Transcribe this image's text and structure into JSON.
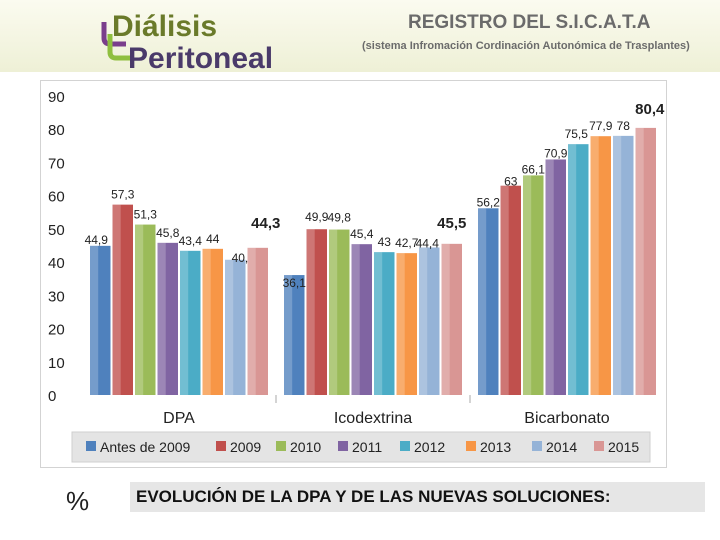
{
  "header": {
    "logo_line1": "Diálisis",
    "logo_line2": "Peritoneal",
    "title": "REGISTRO DEL S.I.C.A.T.A",
    "subtitle": "(sistema Infromación Cordinación Autonómica de Trasplantes)"
  },
  "footer": {
    "symbol": "%",
    "title": "EVOLUCIÓN DE LA DPA Y DE LAS NUEVAS SOLUCIONES:"
  },
  "chart_data": {
    "type": "bar",
    "categories": [
      "DPA",
      "Icodextrina",
      "Bicarbonato"
    ],
    "ylim": [
      0,
      90
    ],
    "yticks": [
      0,
      10,
      20,
      30,
      40,
      50,
      60,
      70,
      80,
      90
    ],
    "ytick_labels": [
      "0",
      "10",
      "20",
      "30",
      "40",
      "50",
      "60",
      "70",
      "80",
      "90"
    ],
    "grid": false,
    "legend_position": "bottom",
    "series": [
      {
        "name": "Antes de 2009",
        "color": "#4f81bd",
        "values": [
          44.9,
          36.1,
          56.2
        ],
        "labels": [
          "44,9",
          "36,1",
          "56,2"
        ]
      },
      {
        "name": "2009",
        "color": "#c0504d",
        "values": [
          57.3,
          49.9,
          63
        ],
        "labels": [
          "57,3",
          "49,9",
          "63"
        ]
      },
      {
        "name": "2010",
        "color": "#9bbb59",
        "values": [
          51.3,
          49.8,
          66.1
        ],
        "labels": [
          "51,3",
          "49,8",
          "66,1"
        ]
      },
      {
        "name": "2011",
        "color": "#8064a2",
        "values": [
          45.8,
          45.4,
          70.9
        ],
        "labels": [
          "45,8",
          "45,4",
          "70,9"
        ]
      },
      {
        "name": "2012",
        "color": "#4bacc6",
        "values": [
          43.4,
          43,
          75.5
        ],
        "labels": [
          "43,4",
          "43",
          "75,5"
        ]
      },
      {
        "name": "2013",
        "color": "#f79646",
        "values": [
          44,
          42.7,
          77.9
        ],
        "labels": [
          "44",
          "42,7",
          "77,9"
        ]
      },
      {
        "name": "2014",
        "color": "#95b3d7",
        "values": [
          40.7,
          44.4,
          78
        ],
        "labels": [
          "40,7",
          "44,4",
          "78"
        ]
      },
      {
        "name": "2015",
        "color": "#d99694",
        "values": [
          44.3,
          45.5,
          80.4
        ],
        "labels": [
          "44,3",
          "45,5",
          "80,4"
        ]
      }
    ]
  }
}
